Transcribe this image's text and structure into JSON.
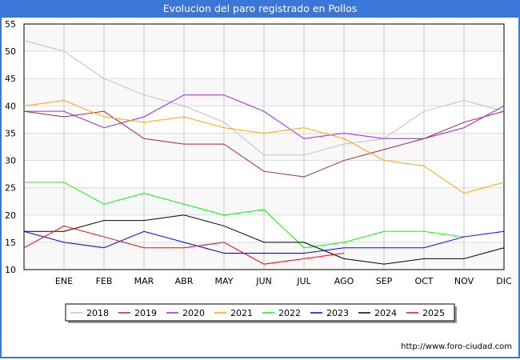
{
  "chart_data": {
    "type": "line",
    "title": "Evolucion del paro registrado en Pollos",
    "categories": [
      "",
      "ENE",
      "FEB",
      "MAR",
      "ABR",
      "MAY",
      "JUN",
      "JUL",
      "AGO",
      "SEP",
      "OCT",
      "NOV",
      "DIC"
    ],
    "ylim": [
      10,
      55
    ],
    "yticks": [
      10,
      15,
      20,
      25,
      30,
      35,
      40,
      45,
      50,
      55
    ],
    "grid": true,
    "legend_position": "bottom",
    "series": [
      {
        "name": "2018",
        "color": "#c0c0c0",
        "values": [
          52,
          50,
          45,
          42,
          40,
          37,
          31,
          31,
          33,
          34,
          39,
          41,
          39
        ]
      },
      {
        "name": "2019",
        "color": "#a52a2a",
        "values": [
          39,
          38,
          39,
          34,
          33,
          33,
          28,
          27,
          30,
          32,
          34,
          37,
          39
        ]
      },
      {
        "name": "2020",
        "color": "#a020f0",
        "values": [
          39,
          39,
          36,
          38,
          42,
          42,
          39,
          34,
          35,
          34,
          34,
          36,
          40
        ]
      },
      {
        "name": "2021",
        "color": "#ffa500",
        "values": [
          40,
          41,
          38,
          37,
          38,
          36,
          35,
          36,
          34,
          30,
          29,
          24,
          26
        ]
      },
      {
        "name": "2022",
        "color": "#00ff00",
        "values": [
          26,
          26,
          22,
          24,
          22,
          20,
          21,
          14,
          15,
          17,
          17,
          16,
          null
        ]
      },
      {
        "name": "2023",
        "color": "#0000ff",
        "values": [
          17,
          15,
          14,
          17,
          15,
          13,
          13,
          13,
          14,
          14,
          14,
          16,
          17
        ]
      },
      {
        "name": "2024",
        "color": "#000000",
        "values": [
          17,
          17,
          19,
          19,
          20,
          18,
          15,
          15,
          12,
          11,
          12,
          12,
          14
        ]
      },
      {
        "name": "2025",
        "color": "#ff0000",
        "values": [
          14,
          18,
          16,
          14,
          14,
          15,
          11,
          12,
          13,
          null,
          null,
          null,
          null
        ]
      }
    ]
  },
  "footer": "http://www.foro-ciudad.com"
}
